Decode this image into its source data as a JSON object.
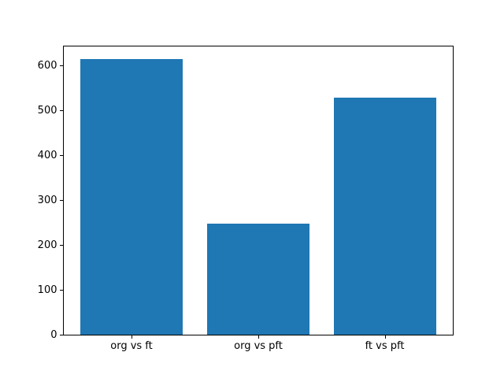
{
  "chart_data": {
    "type": "bar",
    "title": "",
    "xlabel": "",
    "ylabel": "",
    "categories": [
      "org vs ft",
      "org vs pft",
      "ft vs pft"
    ],
    "values": [
      615,
      247,
      529
    ],
    "yticks": [
      0,
      100,
      200,
      300,
      400,
      500,
      600
    ],
    "ylim": [
      0,
      646
    ],
    "grid": false,
    "legend": null,
    "bar_color": "#1f77b4",
    "spine_color": "#000000",
    "background_color": "#ffffff"
  }
}
